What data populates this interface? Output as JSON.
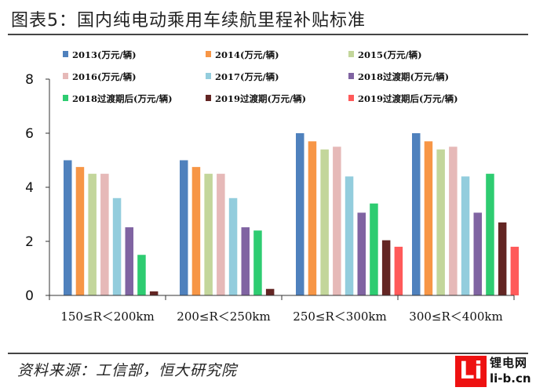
{
  "title": "图表5：国内纯电动乘用车续航里程补贴标准",
  "source": "资料来源：工信部，恒大研究院",
  "watermark": {
    "cn": "锂电网",
    "url": "li-b.cn",
    "box": "Li"
  },
  "chart_data": {
    "type": "bar",
    "title": "",
    "xlabel": "",
    "ylabel": "",
    "ylim": [
      0,
      8
    ],
    "yticks": [
      "0",
      "2",
      "4",
      "6",
      "8"
    ],
    "grid": false,
    "legend_position": "top",
    "categories": [
      "150≤R＜200km",
      "200≤R＜250km",
      "250≤R＜300km",
      "300≤R＜400km"
    ],
    "series": [
      {
        "name": "2013(万元/辆)",
        "color": "#4f81bd",
        "values": [
          5,
          5,
          6,
          6
        ]
      },
      {
        "name": "2014(万元/辆)",
        "color": "#f79646",
        "values": [
          4.75,
          4.75,
          5.7,
          5.7
        ]
      },
      {
        "name": "2015(万元/辆)",
        "color": "#c3d69b",
        "values": [
          4.5,
          4.5,
          5.4,
          5.4
        ]
      },
      {
        "name": "2016(万元/辆)",
        "color": "#e6b9b8",
        "values": [
          4.5,
          4.5,
          5.5,
          5.5
        ]
      },
      {
        "name": "2017(万元/辆)",
        "color": "#93cddd",
        "values": [
          3.6,
          3.6,
          4.4,
          4.4
        ]
      },
      {
        "name": "2018过渡期(万元/辆)",
        "color": "#8064a2",
        "values": [
          2.52,
          2.52,
          3.06,
          3.06
        ]
      },
      {
        "name": "2018过渡期后(万元/辆)",
        "color": "#2ecc71",
        "values": [
          1.5,
          2.4,
          3.4,
          4.5
        ]
      },
      {
        "name": "2019过渡期(万元/辆)",
        "color": "#632523",
        "values": [
          0.15,
          0.24,
          2.04,
          2.7
        ]
      },
      {
        "name": "2019过渡期后(万元/辆)",
        "color": "#ff5a5a",
        "values": [
          0,
          0,
          1.8,
          1.8
        ]
      }
    ]
  }
}
